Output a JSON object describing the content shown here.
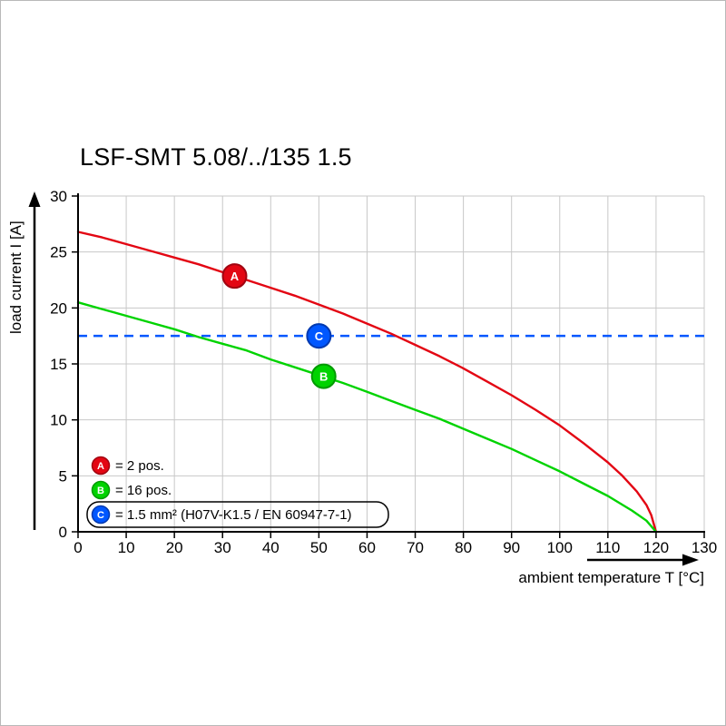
{
  "chart_data": {
    "type": "line",
    "title": "LSF-SMT 5.08/../135 1.5",
    "xlabel": "ambient temperature T [°C]",
    "ylabel": "load current I [A]",
    "xlim": [
      0,
      130
    ],
    "ylim": [
      0,
      30
    ],
    "xticks": [
      0,
      10,
      20,
      30,
      40,
      50,
      60,
      70,
      80,
      90,
      100,
      110,
      120,
      130
    ],
    "yticks": [
      0,
      5,
      10,
      15,
      20,
      25,
      30
    ],
    "grid": true,
    "legend_position": "bottom-left-inside",
    "colors": {
      "axis": "#000000",
      "grid": "#c8c8c8",
      "background": "#ffffff",
      "red": "#e30613",
      "green": "#00d300",
      "blue": "#0057ff"
    },
    "reference_line": {
      "id": "C",
      "y": 17.5,
      "color": "#0057ff",
      "stroke_dark": "#0039b0",
      "style": "dashed",
      "marker_at": [
        50,
        17.5
      ]
    },
    "series": [
      {
        "id": "A",
        "name": "2 pos.",
        "color": "#e30613",
        "stroke_dark": "#a00410",
        "marker_at": [
          32.5,
          22.85
        ],
        "points": [
          [
            0,
            26.8
          ],
          [
            5,
            26.3
          ],
          [
            10,
            25.7
          ],
          [
            15,
            25.1
          ],
          [
            20,
            24.5
          ],
          [
            25,
            23.9
          ],
          [
            30,
            23.2
          ],
          [
            35,
            22.5
          ],
          [
            40,
            21.8
          ],
          [
            45,
            21.1
          ],
          [
            50,
            20.3
          ],
          [
            55,
            19.5
          ],
          [
            60,
            18.6
          ],
          [
            65,
            17.7
          ],
          [
            70,
            16.7
          ],
          [
            75,
            15.7
          ],
          [
            80,
            14.6
          ],
          [
            85,
            13.4
          ],
          [
            90,
            12.2
          ],
          [
            95,
            10.9
          ],
          [
            100,
            9.5
          ],
          [
            105,
            7.9
          ],
          [
            110,
            6.2
          ],
          [
            113,
            5.0
          ],
          [
            116,
            3.6
          ],
          [
            118,
            2.4
          ],
          [
            119,
            1.5
          ],
          [
            120,
            0
          ]
        ]
      },
      {
        "id": "B",
        "name": "16 pos.",
        "color": "#00d300",
        "stroke_dark": "#009a00",
        "marker_at": [
          51,
          13.9
        ],
        "points": [
          [
            0,
            20.5
          ],
          [
            5,
            19.9
          ],
          [
            10,
            19.3
          ],
          [
            15,
            18.7
          ],
          [
            20,
            18.1
          ],
          [
            25,
            17.4
          ],
          [
            30,
            16.8
          ],
          [
            35,
            16.2
          ],
          [
            40,
            15.4
          ],
          [
            45,
            14.7
          ],
          [
            50,
            14.0
          ],
          [
            55,
            13.3
          ],
          [
            60,
            12.5
          ],
          [
            65,
            11.7
          ],
          [
            70,
            10.9
          ],
          [
            75,
            10.1
          ],
          [
            80,
            9.2
          ],
          [
            85,
            8.3
          ],
          [
            90,
            7.4
          ],
          [
            95,
            6.4
          ],
          [
            100,
            5.4
          ],
          [
            105,
            4.3
          ],
          [
            110,
            3.2
          ],
          [
            115,
            1.9
          ],
          [
            118,
            1.0
          ],
          [
            120,
            0
          ]
        ]
      }
    ],
    "legend": [
      {
        "id": "A",
        "color": "#e30613",
        "stroke_dark": "#a00410",
        "text": "= 2 pos.",
        "boxed": false
      },
      {
        "id": "B",
        "color": "#00d300",
        "stroke_dark": "#009a00",
        "text": "= 16 pos.",
        "boxed": false
      },
      {
        "id": "C",
        "color": "#0057ff",
        "stroke_dark": "#0039b0",
        "text": "= 1.5 mm² (H07V-K1.5 / EN 60947-7-1)",
        "boxed": true
      }
    ]
  }
}
